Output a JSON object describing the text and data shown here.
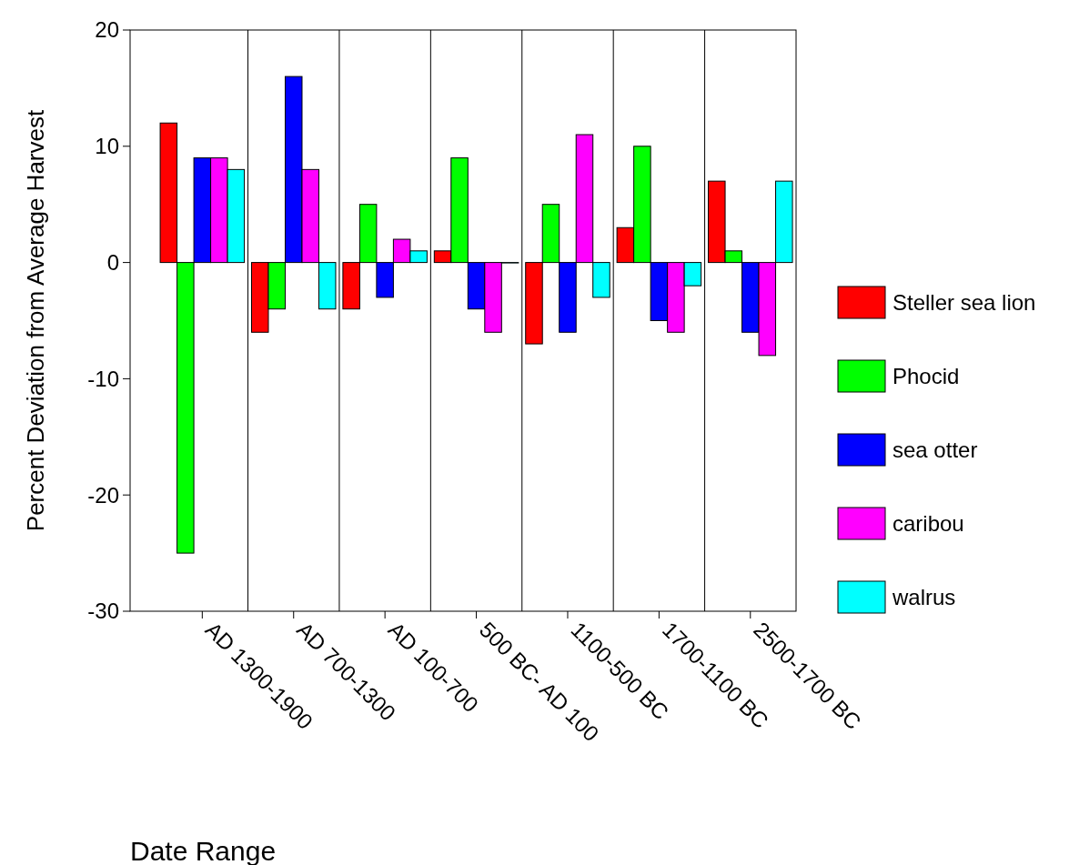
{
  "chart_data": {
    "type": "bar",
    "xlabel": "Date Range",
    "ylabel": "Percent Deviation from Average Harvest",
    "categories": [
      "AD 1300-1900",
      "AD 700-1300",
      "AD 100-700",
      "500 BC- AD 100",
      "1100-500 BC",
      "1700-1100 BC",
      "2500-1700 BC"
    ],
    "series": [
      {
        "name": "Steller sea lion",
        "color": "#ff0000",
        "values": [
          12,
          -6,
          -4,
          1,
          -7,
          3,
          7
        ]
      },
      {
        "name": "Phocid",
        "color": "#00ff00",
        "values": [
          -25,
          -4,
          5,
          9,
          5,
          10,
          1
        ]
      },
      {
        "name": "sea otter",
        "color": "#0000ff",
        "values": [
          9,
          16,
          -3,
          -4,
          -6,
          -5,
          -6
        ]
      },
      {
        "name": "caribou",
        "color": "#ff00ff",
        "values": [
          9,
          8,
          2,
          -6,
          11,
          -6,
          -8
        ]
      },
      {
        "name": "walrus",
        "color": "#00ffff",
        "values": [
          8,
          -4,
          1,
          0,
          -3,
          -2,
          7
        ]
      }
    ],
    "ylim": [
      -30,
      20
    ],
    "yticks": [
      -30,
      -20,
      -10,
      0,
      10,
      20
    ],
    "grid": false,
    "legend": "right"
  }
}
